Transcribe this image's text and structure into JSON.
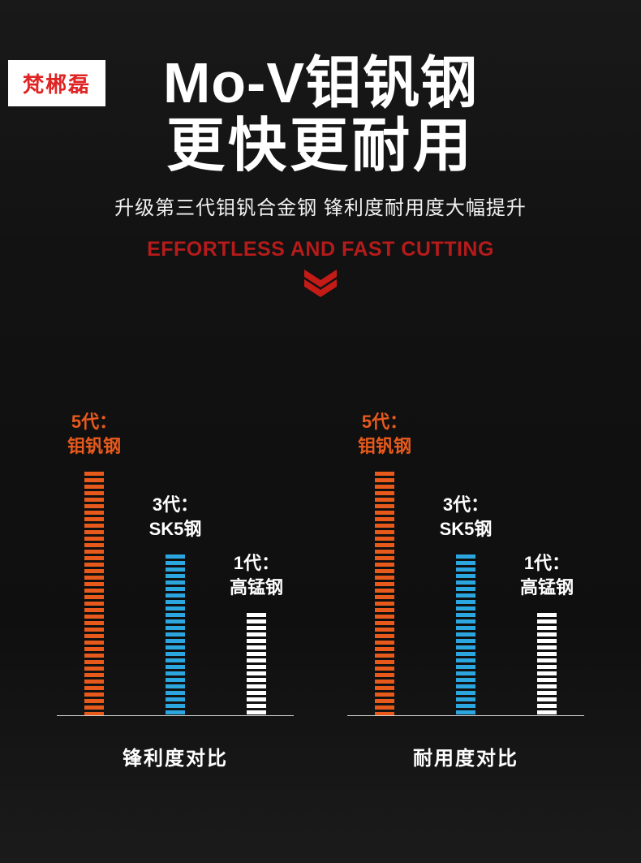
{
  "brand": {
    "logo_text": "梵郴磊"
  },
  "hero": {
    "title_line1": "Mo-V钼钒钢",
    "title_line2": "更快更耐用",
    "subtitle": "升级第三代钼钒合金钢 锋利度耐用度大幅提升",
    "tagline": "EFFORTLESS AND FAST CUTTING"
  },
  "colors": {
    "accent_red": "#c41b16",
    "bar_orange": "#e85a1c",
    "bar_blue": "#2ba6df",
    "bar_white": "#ffffff"
  },
  "chart_data": [
    {
      "type": "bar",
      "title": "锋利度对比",
      "categories": [
        "5代：钼钒钢",
        "3代：SK5钢",
        "1代：高锰钢"
      ],
      "values": [
        100,
        66,
        42
      ],
      "bar_colors": [
        "#e85a1c",
        "#2ba6df",
        "#ffffff"
      ],
      "label_colors": [
        "#e85a1c",
        "#ffffff",
        "#ffffff"
      ],
      "ylim": [
        0,
        100
      ],
      "grid": false,
      "legend": false,
      "bar_style": "horizontal-striped-segments"
    },
    {
      "type": "bar",
      "title": "耐用度对比",
      "categories": [
        "5代：钼钒钢",
        "3代：SK5钢",
        "1代：高锰钢"
      ],
      "values": [
        100,
        66,
        42
      ],
      "bar_colors": [
        "#e85a1c",
        "#2ba6df",
        "#ffffff"
      ],
      "label_colors": [
        "#e85a1c",
        "#ffffff",
        "#ffffff"
      ],
      "ylim": [
        0,
        100
      ],
      "grid": false,
      "legend": false,
      "bar_style": "horizontal-striped-segments"
    }
  ]
}
